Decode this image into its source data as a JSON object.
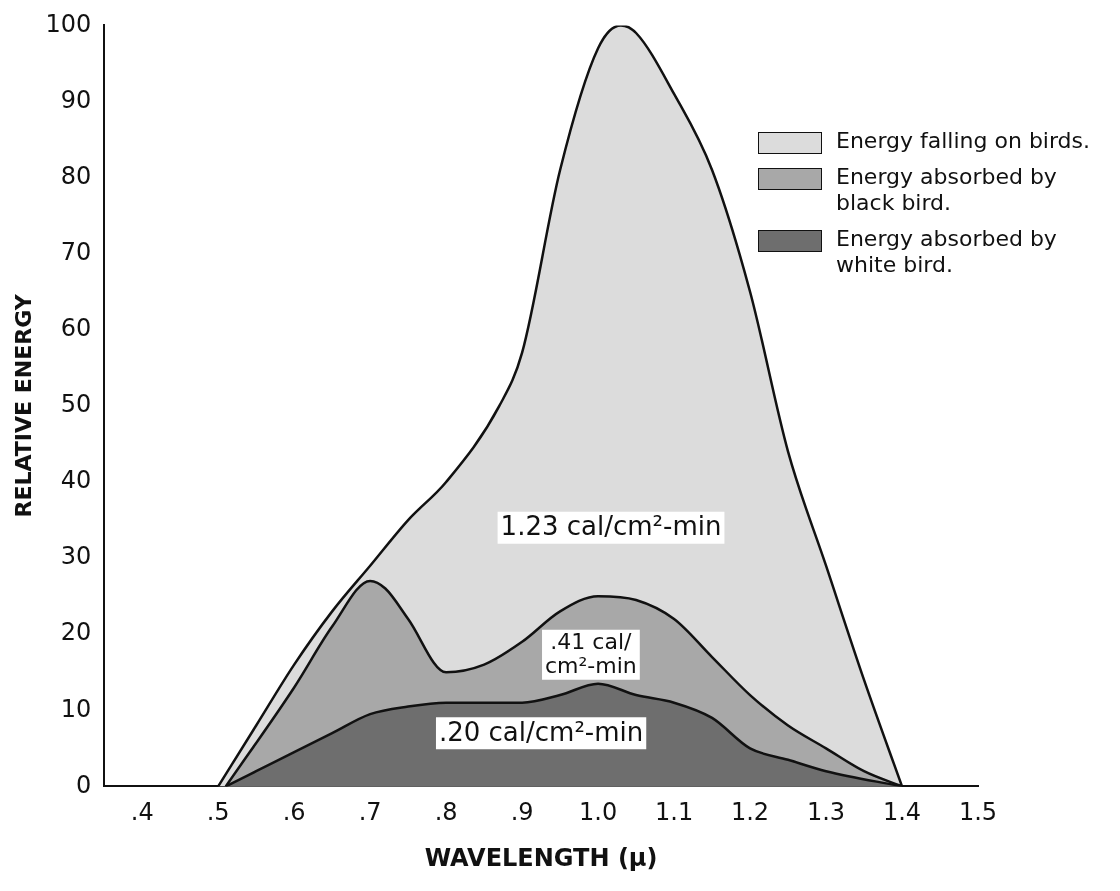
{
  "chart_data": {
    "type": "area",
    "xlabel": "WAVELENGTH (μ)",
    "ylabel": "RELATIVE ENERGY",
    "xlim": [
      0.35,
      1.5
    ],
    "ylim": [
      0,
      100
    ],
    "xticks": [
      {
        "value": 0.4,
        "label": ".4"
      },
      {
        "value": 0.5,
        "label": ".5"
      },
      {
        "value": 0.6,
        "label": ".6"
      },
      {
        "value": 0.7,
        "label": ".7"
      },
      {
        "value": 0.8,
        "label": ".8"
      },
      {
        "value": 0.9,
        "label": ".9"
      },
      {
        "value": 1.0,
        "label": "1.0"
      },
      {
        "value": 1.1,
        "label": "1.1"
      },
      {
        "value": 1.2,
        "label": "1.2"
      },
      {
        "value": 1.3,
        "label": "1.3"
      },
      {
        "value": 1.4,
        "label": "1.4"
      },
      {
        "value": 1.5,
        "label": "1.5"
      }
    ],
    "yticks": [
      0,
      10,
      20,
      30,
      40,
      50,
      60,
      70,
      80,
      90,
      100
    ],
    "grid": false,
    "legend": "top right",
    "series": [
      {
        "name": "Energy falling on birds.",
        "color": "#dcdcdc",
        "x": [
          0.5,
          0.55,
          0.6,
          0.65,
          0.7,
          0.75,
          0.8,
          0.87,
          0.9,
          0.95,
          1.0,
          1.03,
          1.05,
          1.1,
          1.15,
          1.2,
          1.25,
          1.3,
          1.35,
          1.4
        ],
        "values": [
          0,
          8,
          16,
          23,
          29,
          35,
          40,
          50,
          57,
          81,
          97,
          100,
          99,
          91,
          81,
          65,
          44,
          29,
          14,
          0
        ]
      },
      {
        "name": "Energy absorbed by black bird.",
        "color": "#a8a8a8",
        "x": [
          0.51,
          0.6,
          0.65,
          0.7,
          0.72,
          0.75,
          0.8,
          0.85,
          0.9,
          0.95,
          1.0,
          1.05,
          1.1,
          1.15,
          1.2,
          1.25,
          1.3,
          1.35,
          1.4
        ],
        "values": [
          0,
          13,
          21,
          27,
          26,
          22,
          15,
          16,
          19,
          23,
          25,
          24.5,
          22,
          17,
          12,
          8,
          5,
          2,
          0
        ]
      },
      {
        "name": "Energy absorbed by white bird.",
        "color": "#6e6e6e",
        "x": [
          0.51,
          0.55,
          0.6,
          0.65,
          0.7,
          0.75,
          0.8,
          0.9,
          0.95,
          1.0,
          1.05,
          1.1,
          1.15,
          1.2,
          1.25,
          1.3,
          1.4
        ],
        "values": [
          0,
          2,
          4.5,
          7,
          9.5,
          10.5,
          11,
          11,
          12,
          13.5,
          12,
          11,
          9,
          5,
          3.5,
          2,
          0
        ]
      }
    ],
    "annotations": [
      "1.23 cal/cm²-min",
      ".41 cal/\ncm²-min",
      ".20 cal/cm²-min"
    ]
  }
}
